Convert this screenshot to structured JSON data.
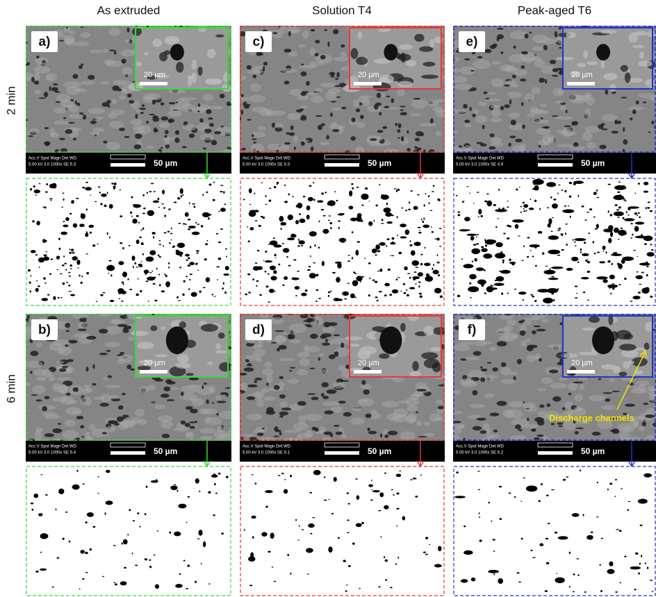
{
  "column_headers": [
    "As extruded",
    "Solution T4",
    "Peak-aged T6"
  ],
  "row_labels": [
    "2 min",
    "6 min"
  ],
  "panels": [
    {
      "label": "a)",
      "inset_scale": "20 µm",
      "scale_bar": "50 µm",
      "info_header": "Acc.V  Spot Magn  Det  WD",
      "info_values": "5.00 kV 3.0  1000x  SE  5.3"
    },
    {
      "label": "c)",
      "inset_scale": "20 µm",
      "scale_bar": "50 µm",
      "info_header": "Acc.V  Spot Magn  Det  WD",
      "info_values": "5.00 kV 3.0  1000x  SE  5.0"
    },
    {
      "label": "e)",
      "inset_scale": "20 µm",
      "scale_bar": "50 µm",
      "info_header": "Acc.V  Spot Magn  Det  WD",
      "info_values": "5.00 kV 3.0  1000x  SE  4.9"
    },
    {
      "label": "b)",
      "inset_scale": "20 µm",
      "scale_bar": "50 µm",
      "info_header": "Acc.V  Spot Magn  Det  WD",
      "info_values": "5.00 kV 3.0  1000x  SE  5.4"
    },
    {
      "label": "d)",
      "inset_scale": "20 µm",
      "scale_bar": "50 µm",
      "info_header": "Acc.V  Spot Magn  Det  WD",
      "info_values": "5.00 kV 3.0  1000x  SE  5.1"
    },
    {
      "label": "f)",
      "inset_scale": "20 µm",
      "scale_bar": "50 µm",
      "info_header": "Acc.V  Spot Magn  Det  WD",
      "info_values": "5.00 kV 3.0  1000x  SE  5.2"
    }
  ],
  "annotation": "Discharge channels"
}
